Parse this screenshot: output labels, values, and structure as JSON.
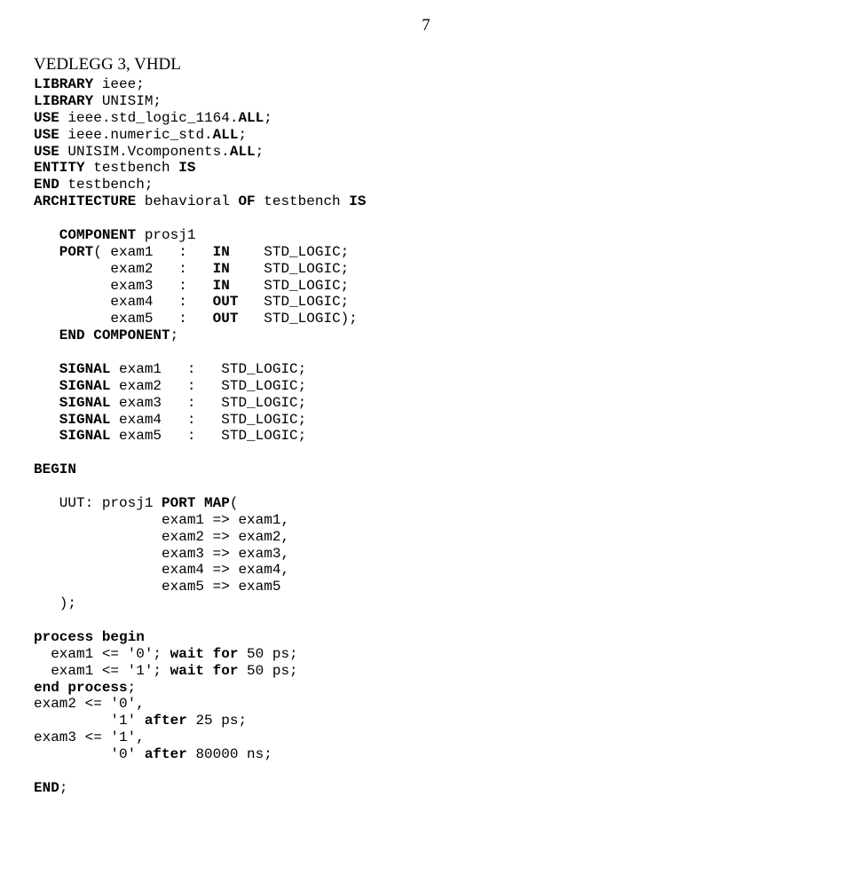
{
  "page_number": "7",
  "title": "VEDLEGG 3, VHDL",
  "code": {
    "l1a": "LIBRARY",
    "l1b": " ieee;",
    "l2a": "LIBRARY",
    "l2b": " UNISIM;",
    "l3a": "USE",
    "l3b": " ieee.std_logic_1164.",
    "l3c": "ALL",
    "l3d": ";",
    "l4a": "USE",
    "l4b": " ieee.numeric_std.",
    "l4c": "ALL",
    "l4d": ";",
    "l5a": "USE",
    "l5b": " UNISIM.Vcomponents.",
    "l5c": "ALL",
    "l5d": ";",
    "l6a": "ENTITY",
    "l6b": " testbench ",
    "l6c": "IS",
    "l7a": "END",
    "l7b": " testbench;",
    "l8a": "ARCHITECTURE",
    "l8b": " behavioral ",
    "l8c": "OF",
    "l8d": " testbench ",
    "l8e": "IS",
    "blank": "",
    "l9a": "   COMPONENT",
    "l9b": " prosj1",
    "l10a": "   PORT",
    "l10b": "( exam1   :   ",
    "l10c": "IN",
    "l10d": "    STD_LOGIC;",
    "l11a": "         exam2   :   ",
    "l11b": "IN",
    "l11c": "    STD_LOGIC;",
    "l12a": "         exam3   :   ",
    "l12b": "IN",
    "l12c": "    STD_LOGIC;",
    "l13a": "         exam4   :   ",
    "l13b": "OUT",
    "l13c": "   STD_LOGIC;",
    "l14a": "         exam5   :   ",
    "l14b": "OUT",
    "l14c": "   STD_LOGIC);",
    "l15a": "   END COMPONENT",
    "l15b": ";",
    "l16a": "   SIGNAL",
    "l16b": " exam1   :   STD_LOGIC;",
    "l17a": "   SIGNAL",
    "l17b": " exam2   :   STD_LOGIC;",
    "l18a": "   SIGNAL",
    "l18b": " exam3   :   STD_LOGIC;",
    "l19a": "   SIGNAL",
    "l19b": " exam4   :   STD_LOGIC;",
    "l20a": "   SIGNAL",
    "l20b": " exam5   :   STD_LOGIC;",
    "l21": "BEGIN",
    "l22a": "   UUT: prosj1 ",
    "l22b": "PORT MAP",
    "l22c": "(",
    "l23": "               exam1 => exam1,",
    "l24": "               exam2 => exam2,",
    "l25": "               exam3 => exam3,",
    "l26": "               exam4 => exam4,",
    "l27": "               exam5 => exam5",
    "l28": "   );",
    "l29a": "process begin",
    "l30a": "  exam1 <= '0'; ",
    "l30b": "wait for",
    "l30c": " 50 ps;",
    "l31a": "  exam1 <= '1'; ",
    "l31b": "wait for",
    "l31c": " 50 ps;",
    "l32a": "end process",
    "l32b": ";",
    "l33": "exam2 <= '0',",
    "l34a": "         '1' ",
    "l34b": "after",
    "l34c": " 25 ps;",
    "l35": "exam3 <= '1',",
    "l36a": "         '0' ",
    "l36b": "after",
    "l36c": " 80000 ns;",
    "l37a": "END",
    "l37b": ";"
  }
}
